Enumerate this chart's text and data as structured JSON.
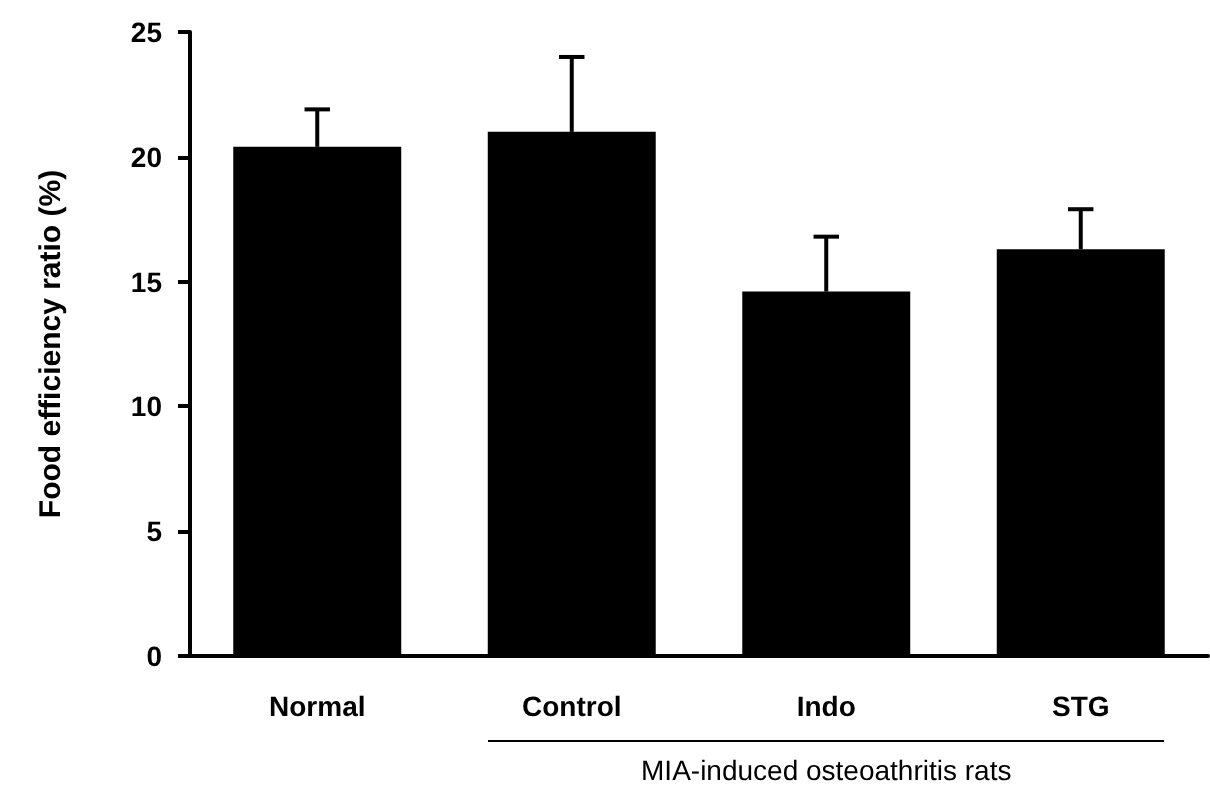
{
  "chart_data": {
    "type": "bar",
    "ylabel": "Food efficiency ratio (%)",
    "categories": [
      "Normal",
      "Control",
      "Indo",
      "STG"
    ],
    "values": [
      20.4,
      21.0,
      14.6,
      16.3
    ],
    "errors": [
      [
        20.4,
        21.9
      ],
      [
        21.0,
        24.0
      ],
      [
        14.6,
        16.8
      ],
      [
        16.3,
        17.9
      ]
    ],
    "color": "#000000",
    "ylim": [
      0,
      25
    ],
    "yticks": [
      0,
      5,
      10,
      15,
      20,
      25
    ],
    "grid": false,
    "annotations": [
      "MIA-induced osteoathritis rats"
    ]
  }
}
